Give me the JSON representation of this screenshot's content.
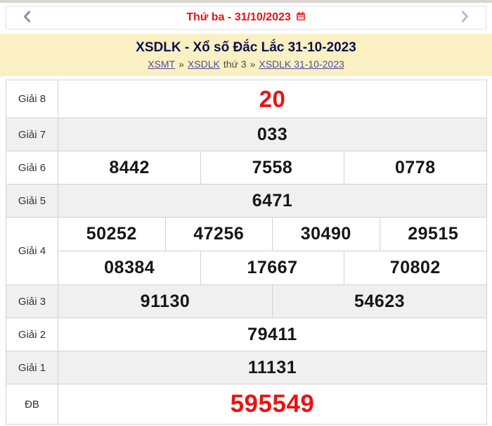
{
  "topbar": {
    "prev_label": "previous day",
    "next_label": "next day",
    "date_label": "Thứ ba - 31/10/2023"
  },
  "header": {
    "title": "XSDLK - Xổ số Đắc Lắc 31-10-2023",
    "breadcrumb": [
      {
        "text": "XSMT",
        "link": true
      },
      {
        "text": "»",
        "link": false
      },
      {
        "text": "XSDLK",
        "link": true
      },
      {
        "text": "thứ 3",
        "link": false
      },
      {
        "text": "»",
        "link": false
      },
      {
        "text": "XSDLK 31-10-2023",
        "link": true
      }
    ]
  },
  "results_table": {
    "rows": [
      {
        "label": "Giải 8",
        "lines": [
          [
            "20"
          ]
        ],
        "highlight": "#ee1111"
      },
      {
        "label": "Giải 7",
        "lines": [
          [
            "033"
          ]
        ]
      },
      {
        "label": "Giải 6",
        "lines": [
          [
            "8442",
            "7558",
            "0778"
          ]
        ]
      },
      {
        "label": "Giải 5",
        "lines": [
          [
            "6471"
          ]
        ]
      },
      {
        "label": "Giải 4",
        "lines": [
          [
            "50252",
            "47256",
            "30490",
            "29515"
          ],
          [
            "08384",
            "17667",
            "70802"
          ]
        ]
      },
      {
        "label": "Giải 3",
        "lines": [
          [
            "91130",
            "54623"
          ]
        ]
      },
      {
        "label": "Giải 2",
        "lines": [
          [
            "79411"
          ]
        ]
      },
      {
        "label": "Giải 1",
        "lines": [
          [
            "11131"
          ]
        ]
      },
      {
        "label": "ĐB",
        "lines": [
          [
            "595549"
          ]
        ],
        "highlight": "#ee1111"
      }
    ]
  },
  "colors": {
    "accent_red": "#e31212",
    "header_bg": "#faf0c3",
    "row_alt_bg": "#f0f0f0",
    "border": "#d2d2d2",
    "link": "#4e4c9e"
  }
}
